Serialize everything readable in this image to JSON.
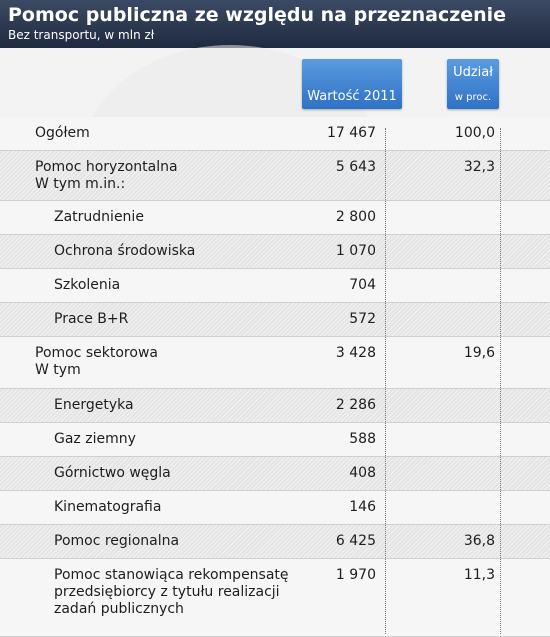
{
  "header": {
    "title": "Pomoc publiczna ze względu na przeznaczenie",
    "subtitle": "Bez transportu, w mln zł"
  },
  "columns": {
    "value": "Wartość 2011",
    "share_line1": "Udział",
    "share_line2": "w proc."
  },
  "colors": {
    "header_bg": "#2b3750",
    "column_header_bg": "#3d82d4",
    "stripe": "#e4e4e4"
  },
  "rows": [
    {
      "label": "Ogółem",
      "value": "17 467",
      "share": "100,0",
      "indent": false
    },
    {
      "label": "Pomoc horyzontalna",
      "label2": "W tym m.in.:",
      "value": "5 643",
      "share": "32,3",
      "indent": false
    },
    {
      "label": "Zatrudnienie",
      "value": "2 800",
      "share": "",
      "indent": true
    },
    {
      "label": "Ochrona środowiska",
      "value": "1 070",
      "share": "",
      "indent": true
    },
    {
      "label": "Szkolenia",
      "value": "704",
      "share": "",
      "indent": true
    },
    {
      "label": "Prace B+R",
      "value": "572",
      "share": "",
      "indent": true
    },
    {
      "label": "Pomoc sektorowa",
      "label2": "W tym",
      "value": "3 428",
      "share": "19,6",
      "indent": false
    },
    {
      "label": "Energetyka",
      "value": "2 286",
      "share": "",
      "indent": true
    },
    {
      "label": "Gaz ziemny",
      "value": "588",
      "share": "",
      "indent": true
    },
    {
      "label": "Górnictwo węgla",
      "value": "408",
      "share": "",
      "indent": true
    },
    {
      "label": "Kinematografia",
      "value": "146",
      "share": "",
      "indent": true
    },
    {
      "label": "Pomoc regionalna",
      "value": "6 425",
      "share": "36,8",
      "indent": true
    },
    {
      "label": "Pomoc stanowiąca rekompensatę",
      "label2": "przedsiębiorcy z tytułu realizacji",
      "label3": "zadań publicznych",
      "value": "1 970",
      "share": "11,3",
      "indent": true
    }
  ],
  "chart_data": {
    "type": "table",
    "title": "Pomoc publiczna ze względu na przeznaczenie",
    "subtitle": "Bez transportu, w mln zł",
    "columns": [
      "",
      "Wartość 2011",
      "Udział w proc."
    ],
    "rows": [
      [
        "Ogółem",
        17467,
        100.0
      ],
      [
        "Pomoc horyzontalna W tym m.in.:",
        5643,
        32.3
      ],
      [
        "Zatrudnienie",
        2800,
        null
      ],
      [
        "Ochrona środowiska",
        1070,
        null
      ],
      [
        "Szkolenia",
        704,
        null
      ],
      [
        "Prace B+R",
        572,
        null
      ],
      [
        "Pomoc sektorowa W tym",
        3428,
        19.6
      ],
      [
        "Energetyka",
        2286,
        null
      ],
      [
        "Gaz ziemny",
        588,
        null
      ],
      [
        "Górnictwo węgla",
        408,
        null
      ],
      [
        "Kinematografia",
        146,
        null
      ],
      [
        "Pomoc regionalna",
        6425,
        36.8
      ],
      [
        "Pomoc stanowiąca rekompensatę przedsiębiorcy z tytułu realizacji zadań publicznych",
        1970,
        11.3
      ]
    ]
  }
}
